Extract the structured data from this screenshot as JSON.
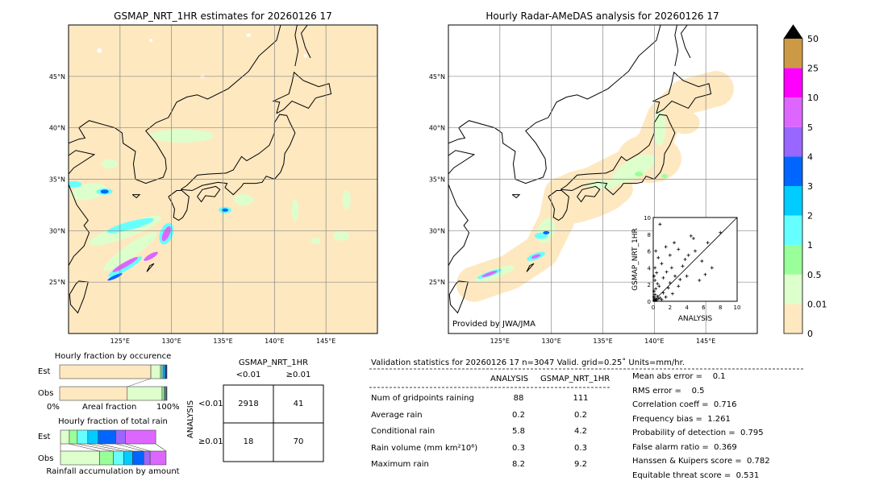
{
  "left_map": {
    "title": "GSMAP_NRT_1HR estimates for 20260126 17"
  },
  "right_map": {
    "title": "Hourly Radar-AMeDAS analysis for 20260126 17",
    "credit": "Provided by JWA/JMA"
  },
  "map_axes": {
    "lon_ticks": [
      "125°E",
      "130°E",
      "135°E",
      "140°E",
      "145°E"
    ],
    "lat_ticks": [
      "45°N",
      "40°N",
      "35°N",
      "30°N",
      "25°N"
    ],
    "lon_range": [
      120,
      150
    ],
    "lat_range": [
      20,
      50
    ]
  },
  "colorbar": {
    "labels": [
      "50",
      "25",
      "10",
      "5",
      "4",
      "3",
      "2",
      "1",
      "0.5",
      "0.01",
      "0"
    ],
    "colors": [
      "#cc9944",
      "#ff00ff",
      "#dd66ff",
      "#9966ff",
      "#0066ff",
      "#00ccff",
      "#66ffff",
      "#99ff99",
      "#ddffcc",
      "#fee8c0"
    ],
    "extend_color": "#000000"
  },
  "chart_data": [
    {
      "type": "scatter",
      "xlabel": "ANALYSIS",
      "ylabel": "GSMAP_NRT_1HR",
      "xlim": [
        0,
        10
      ],
      "ylim": [
        0,
        10
      ],
      "x_ticks": [
        "0",
        "2",
        "4",
        "6",
        "8",
        "10"
      ],
      "y_ticks": [
        "0",
        "2",
        "4",
        "6",
        "8",
        "10"
      ],
      "points": [
        [
          0.1,
          0.1
        ],
        [
          0.2,
          0.3
        ],
        [
          0.3,
          0.1
        ],
        [
          0.1,
          0.5
        ],
        [
          0.4,
          0.2
        ],
        [
          0.5,
          0.6
        ],
        [
          0.2,
          0.8
        ],
        [
          0.6,
          0.3
        ],
        [
          0.1,
          1.2
        ],
        [
          0.3,
          1.5
        ],
        [
          0.8,
          0.4
        ],
        [
          1.0,
          0.2
        ],
        [
          0.5,
          2.1
        ],
        [
          0.2,
          2.5
        ],
        [
          0.1,
          3.0
        ],
        [
          0.4,
          3.4
        ],
        [
          1.2,
          1.0
        ],
        [
          1.5,
          0.5
        ],
        [
          1.8,
          1.6
        ],
        [
          2.0,
          2.2
        ],
        [
          2.3,
          0.9
        ],
        [
          2.6,
          3.0
        ],
        [
          3.0,
          1.8
        ],
        [
          3.2,
          2.6
        ],
        [
          3.5,
          4.2
        ],
        [
          4.0,
          3.0
        ],
        [
          4.2,
          5.5
        ],
        [
          1.0,
          4.5
        ],
        [
          0.6,
          5.2
        ],
        [
          0.3,
          6.0
        ],
        [
          1.5,
          6.5
        ],
        [
          2.5,
          7.0
        ],
        [
          4.8,
          7.5
        ],
        [
          5.0,
          6.0
        ],
        [
          5.8,
          4.8
        ],
        [
          6.2,
          3.2
        ],
        [
          7.0,
          4.0
        ],
        [
          8.0,
          8.2
        ],
        [
          0.8,
          9.2
        ],
        [
          4.5,
          7.8
        ],
        [
          3.8,
          5.0
        ],
        [
          2.2,
          4.0
        ],
        [
          1.2,
          2.8
        ],
        [
          0.7,
          1.8
        ],
        [
          6.5,
          7.0
        ],
        [
          5.5,
          2.5
        ],
        [
          3.0,
          6.2
        ],
        [
          2.0,
          5.5
        ],
        [
          0.2,
          4.0
        ],
        [
          1.6,
          3.5
        ]
      ]
    },
    {
      "type": "bar",
      "title": "Hourly fraction by occurence",
      "xlabel": "Areal fraction",
      "x_ticks": [
        "0%",
        "100%"
      ],
      "categories": [
        "Est",
        "Obs"
      ],
      "series": [
        {
          "values": [
            [
              85.0,
              9.0,
              1.5,
              1.0,
              1.5,
              1.0,
              1.0
            ],
            [
              63.0,
              32.5,
              2.0,
              0.8,
              0.8,
              0.5,
              0.4
            ]
          ]
        }
      ]
    },
    {
      "type": "bar",
      "title": "Hourly fraction of total rain",
      "xlabel": "Rainfall accumulation by amount",
      "categories": [
        "Est",
        "Obs"
      ],
      "series": [
        {
          "values": [
            [
              8.3,
              7.5,
              9.8,
              9.8,
              16.5,
              9.0,
              28.6
            ],
            [
              36.8,
              12.8,
              9.8,
              8.3,
              10.5,
              6.0,
              15.0
            ]
          ]
        }
      ]
    },
    {
      "type": "table",
      "title": "GSMAP_NRT_1HR",
      "row_label": "ANALYSIS",
      "columns": [
        "<0.01",
        "≥0.01"
      ],
      "rows": [
        "<0.01",
        "≥0.01"
      ],
      "values": [
        [
          2918,
          41
        ],
        [
          18,
          70
        ]
      ]
    }
  ],
  "stats": {
    "header": "Validation statistics for 20260126 17  n=3047 Valid. grid=0.25˚ Units=mm/hr.",
    "columns": [
      "ANALYSIS",
      "GSMAP_NRT_1HR"
    ],
    "rows": [
      {
        "label": "Num of gridpoints raining",
        "a": "88",
        "g": "111"
      },
      {
        "label": "Average rain",
        "a": "0.2",
        "g": "0.2"
      },
      {
        "label": "Conditional rain",
        "a": "5.8",
        "g": "4.2"
      },
      {
        "label": "Rain volume (mm km²10⁶)",
        "a": "0.3",
        "g": "0.3"
      },
      {
        "label": "Maximum rain",
        "a": "8.2",
        "g": "9.2"
      }
    ],
    "scores": [
      "Mean abs error =    0.1",
      "RMS error =    0.5",
      "Correlation coeff =  0.716",
      "Frequency bias =  1.261",
      "Probability of detection =  0.795",
      "False alarm ratio =  0.369",
      "Hanssen & Kuipers score =  0.782",
      "Equitable threat score =  0.531"
    ]
  }
}
